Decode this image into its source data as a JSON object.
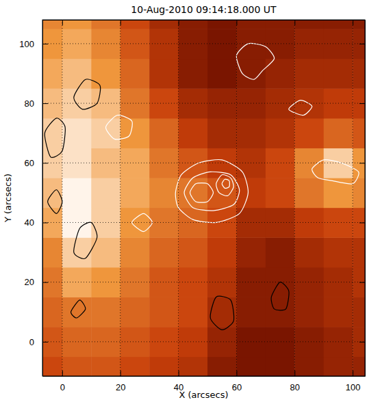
{
  "chart_data": {
    "type": "heatmap",
    "title": "10-Aug-2010 09:14:18.000 UT",
    "x_label": "X (arcsecs)",
    "y_label": "Y (arcsecs)",
    "xlim": [
      -6.8,
      104.2
    ],
    "ylim": [
      -11.5,
      108
    ],
    "xticks": [
      0,
      20,
      40,
      60,
      80,
      100
    ],
    "yticks": [
      0,
      20,
      40,
      60,
      80,
      100
    ],
    "grid": true,
    "cells": {
      "x": [
        -5,
        5,
        15,
        25,
        35,
        45,
        55,
        65,
        75,
        85,
        95,
        105
      ],
      "y": [
        -10,
        0,
        10,
        20,
        30,
        40,
        50,
        60,
        70,
        80,
        90,
        100,
        110
      ],
      "z": [
        [
          0.45,
          0.5,
          0.5,
          0.45,
          0.4,
          0.35,
          0.2,
          0.15,
          0.15,
          0.2,
          0.25,
          0.25
        ],
        [
          0.5,
          0.55,
          0.55,
          0.5,
          0.45,
          0.4,
          0.25,
          0.15,
          0.15,
          0.2,
          0.25,
          0.3
        ],
        [
          0.55,
          0.6,
          0.6,
          0.55,
          0.5,
          0.45,
          0.3,
          0.2,
          0.2,
          0.25,
          0.3,
          0.3
        ],
        [
          0.6,
          0.75,
          0.7,
          0.6,
          0.5,
          0.45,
          0.35,
          0.2,
          0.2,
          0.25,
          0.3,
          0.35
        ],
        [
          0.65,
          0.85,
          0.8,
          0.65,
          0.55,
          0.5,
          0.4,
          0.25,
          0.2,
          0.3,
          0.35,
          0.35
        ],
        [
          0.75,
          0.95,
          0.85,
          0.7,
          0.6,
          0.55,
          0.45,
          0.3,
          0.3,
          0.4,
          0.45,
          0.45
        ],
        [
          0.8,
          0.95,
          0.85,
          0.75,
          0.65,
          0.6,
          0.5,
          0.4,
          0.45,
          0.6,
          0.7,
          0.65
        ],
        [
          0.85,
          0.9,
          0.8,
          0.75,
          0.6,
          0.5,
          0.4,
          0.35,
          0.45,
          0.65,
          0.85,
          0.7
        ],
        [
          0.85,
          0.9,
          0.85,
          0.7,
          0.55,
          0.4,
          0.3,
          0.3,
          0.35,
          0.45,
          0.55,
          0.5
        ],
        [
          0.8,
          0.85,
          0.8,
          0.6,
          0.45,
          0.3,
          0.25,
          0.25,
          0.3,
          0.35,
          0.4,
          0.4
        ],
        [
          0.75,
          0.8,
          0.7,
          0.55,
          0.35,
          0.2,
          0.15,
          0.2,
          0.25,
          0.3,
          0.3,
          0.3
        ],
        [
          0.7,
          0.75,
          0.65,
          0.5,
          0.35,
          0.2,
          0.15,
          0.2,
          0.2,
          0.25,
          0.25,
          0.25
        ],
        [
          0.65,
          0.7,
          0.6,
          0.45,
          0.3,
          0.2,
          0.15,
          0.2,
          0.2,
          0.2,
          0.2,
          0.2
        ]
      ]
    },
    "contours": [
      {
        "color": "white",
        "polygons": [
          {
            "x": [
              39,
              41,
              47,
              55,
              62,
              64,
              61,
              53,
              45,
              40
            ],
            "y": [
              50,
              56,
              60,
              61,
              57,
              50,
              43,
              40,
              41,
              45
            ]
          },
          {
            "x": [
              42,
              45,
              51,
              58,
              61,
              59,
              52,
              45
            ],
            "y": [
              50,
              55,
              57,
              56,
              51,
              46,
              44,
              45
            ]
          },
          {
            "x": [
              44,
              46,
              50,
              52,
              50,
              46
            ],
            "y": [
              50,
              53,
              53,
              50,
              47,
              47
            ]
          },
          {
            "x": [
              53,
              55,
              58,
              59,
              57,
              54
            ],
            "y": [
              53,
              56,
              55,
              52,
              49,
              50
            ]
          },
          {
            "x": [
              55,
              56,
              57.5,
              57.5,
              56
            ],
            "y": [
              53,
              54.5,
              54,
              52,
              51.5
            ]
          },
          {
            "x": [
              60,
              64,
              70,
              73,
              69,
              66,
              62
            ],
            "y": [
              96,
              100,
              99,
              95,
              91,
              88,
              90
            ]
          },
          {
            "x": [
              86,
              90,
              96,
              102,
              100,
              93,
              88
            ],
            "y": [
              58,
              61,
              60,
              57,
              53,
              54,
              55
            ]
          },
          {
            "x": [
              15,
              19,
              24,
              23,
              18
            ],
            "y": [
              72,
              76,
              74,
              69,
              68
            ]
          },
          {
            "x": [
              24,
              28,
              31,
              28
            ],
            "y": [
              40,
              43,
              40,
              37
            ]
          },
          {
            "x": [
              78,
              82,
              86,
              83
            ],
            "y": [
              78,
              81,
              79,
              76
            ]
          }
        ]
      },
      {
        "color": "black",
        "polygons": [
          {
            "x": [
              -6,
              -2,
              1,
              0,
              -4
            ],
            "y": [
              70,
              75,
              72,
              64,
              62
            ]
          },
          {
            "x": [
              4,
              8,
              13,
              12,
              7
            ],
            "y": [
              82,
              88,
              86,
              80,
              78
            ]
          },
          {
            "x": [
              4,
              6,
              10,
              12,
              8
            ],
            "y": [
              30,
              38,
              40,
              35,
              28
            ]
          },
          {
            "x": [
              51,
              53,
              58,
              59,
              55
            ],
            "y": [
              8,
              15,
              14,
              7,
              4
            ]
          },
          {
            "x": [
              72,
              75,
              78,
              77,
              73
            ],
            "y": [
              15,
              20,
              17,
              11,
              11
            ]
          },
          {
            "x": [
              3,
              6,
              8,
              5
            ],
            "y": [
              10,
              14,
              11,
              8
            ]
          },
          {
            "x": [
              -5,
              -2,
              0,
              -2
            ],
            "y": [
              47,
              51,
              47,
              43
            ]
          }
        ]
      }
    ]
  }
}
